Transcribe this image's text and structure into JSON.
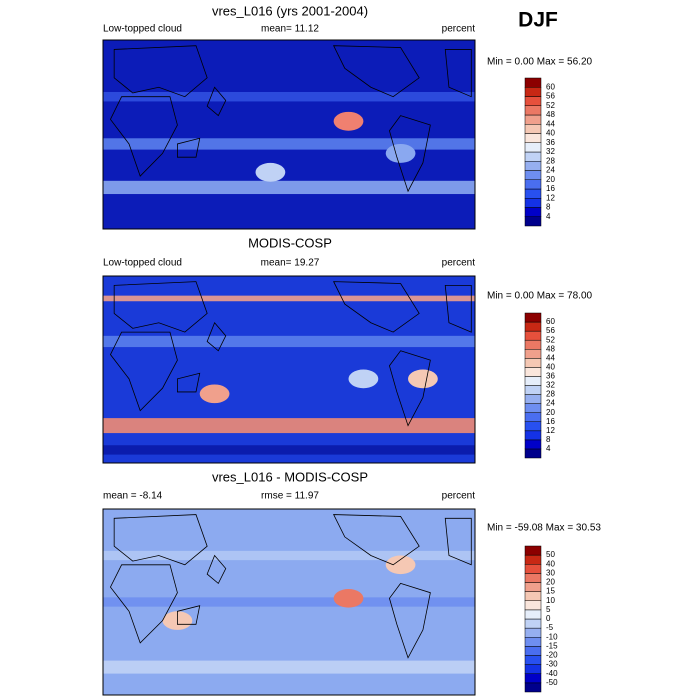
{
  "header": {
    "season": "DJF"
  },
  "panels": [
    {
      "title": "vres_L016 (yrs 2001-2004)",
      "left": "Low-topped cloud",
      "center": "mean=  11.12",
      "right": "percent",
      "range": "Min =  0.00 Max =  56.20",
      "colorbar": {
        "labels": [
          4,
          8,
          12,
          16,
          20,
          24,
          28,
          32,
          36,
          40,
          44,
          48,
          52,
          56,
          60
        ],
        "colors": [
          "#00008c",
          "#0000c8",
          "#1432e6",
          "#2850f0",
          "#4a6ef0",
          "#6e8ef0",
          "#96aff0",
          "#c0d2f5",
          "#e6eefa",
          "#fae6dc",
          "#f5c8b4",
          "#f0a08c",
          "#eb7864",
          "#e6503c",
          "#c82814",
          "#8c0000"
        ]
      }
    },
    {
      "title": "MODIS-COSP",
      "left": "Low-topped cloud",
      "center": "mean=  19.27",
      "right": "percent",
      "range": "Min =  0.00 Max =  78.00",
      "colorbar": {
        "labels": [
          4,
          8,
          12,
          16,
          20,
          24,
          28,
          32,
          36,
          40,
          44,
          48,
          52,
          56,
          60
        ],
        "colors": [
          "#00008c",
          "#0000c8",
          "#1432e6",
          "#2850f0",
          "#4a6ef0",
          "#6e8ef0",
          "#96aff0",
          "#c0d2f5",
          "#e6eefa",
          "#fae6dc",
          "#f5c8b4",
          "#f0a08c",
          "#eb7864",
          "#e6503c",
          "#c82814",
          "#8c0000"
        ]
      }
    },
    {
      "title": "vres_L016 - MODIS-COSP",
      "left": "mean = -8.14",
      "center": "rmse =  11.97",
      "right": "percent",
      "range": "Min = -59.08 Max =  30.53",
      "colorbar": {
        "labels": [
          -50,
          -40,
          -30,
          -20,
          -15,
          -10,
          -5,
          0,
          5,
          10,
          15,
          20,
          30,
          40,
          50
        ],
        "colors": [
          "#00008c",
          "#0000c8",
          "#1432e6",
          "#2850f0",
          "#4a6ef0",
          "#6e8ef0",
          "#96aff0",
          "#c0d2f5",
          "#e6eefa",
          "#fae6dc",
          "#f5c8b4",
          "#f0a08c",
          "#eb7864",
          "#e6503c",
          "#c82814",
          "#8c0000"
        ]
      }
    }
  ]
}
